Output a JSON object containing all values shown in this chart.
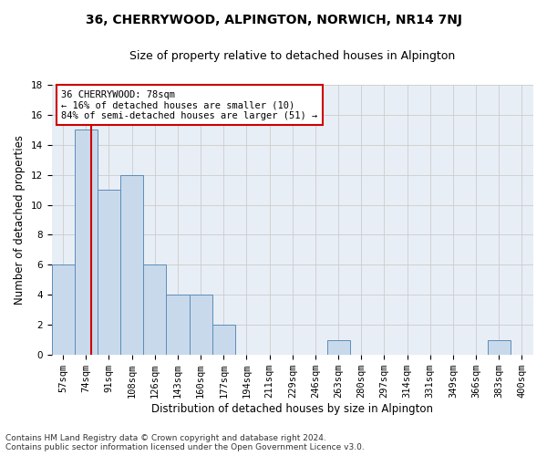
{
  "title": "36, CHERRYWOOD, ALPINGTON, NORWICH, NR14 7NJ",
  "subtitle": "Size of property relative to detached houses in Alpington",
  "xlabel": "Distribution of detached houses by size in Alpington",
  "ylabel": "Number of detached properties",
  "bin_labels": [
    "57sqm",
    "74sqm",
    "91sqm",
    "108sqm",
    "126sqm",
    "143sqm",
    "160sqm",
    "177sqm",
    "194sqm",
    "211sqm",
    "229sqm",
    "246sqm",
    "263sqm",
    "280sqm",
    "297sqm",
    "314sqm",
    "331sqm",
    "349sqm",
    "366sqm",
    "383sqm",
    "400sqm"
  ],
  "bar_values": [
    6,
    15,
    11,
    12,
    6,
    4,
    4,
    2,
    0,
    0,
    0,
    0,
    1,
    0,
    0,
    0,
    0,
    0,
    0,
    1,
    0
  ],
  "bar_color": "#c9d9ec",
  "bar_edgecolor": "#5b8db8",
  "grid_color": "#cccccc",
  "bg_color": "#e8eef5",
  "property_value": 78,
  "marker_line_color": "#cc0000",
  "annotation_line1": "36 CHERRYWOOD: 78sqm",
  "annotation_line2": "← 16% of detached houses are smaller (10)",
  "annotation_line3": "84% of semi-detached houses are larger (51) →",
  "annotation_box_color": "#cc0000",
  "ylim": [
    0,
    18
  ],
  "yticks": [
    0,
    2,
    4,
    6,
    8,
    10,
    12,
    14,
    16,
    18
  ],
  "footnote": "Contains HM Land Registry data © Crown copyright and database right 2024.\nContains public sector information licensed under the Open Government Licence v3.0.",
  "title_fontsize": 10,
  "subtitle_fontsize": 9,
  "xlabel_fontsize": 8.5,
  "ylabel_fontsize": 8.5,
  "tick_fontsize": 7.5,
  "annotation_fontsize": 7.5,
  "footnote_fontsize": 6.5
}
